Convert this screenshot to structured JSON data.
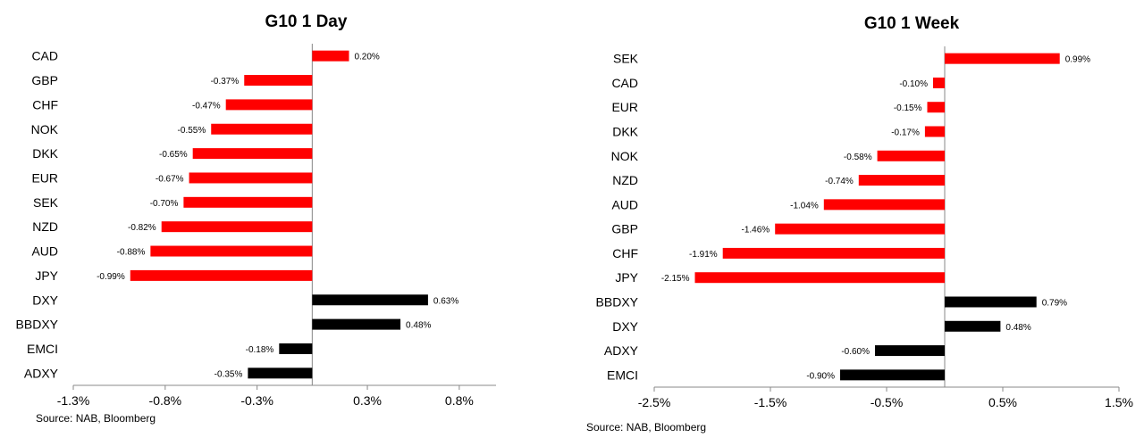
{
  "chart_data": [
    {
      "type": "bar",
      "orientation": "horizontal",
      "title": "G10 1 Day",
      "source": "Source: NAB, Bloomberg",
      "categories": [
        "CAD",
        "GBP",
        "CHF",
        "NOK",
        "DKK",
        "EUR",
        "SEK",
        "NZD",
        "AUD",
        "JPY",
        "DXY",
        "BBDXY",
        "EMCI",
        "ADXY"
      ],
      "values": [
        0.2,
        -0.37,
        -0.47,
        -0.55,
        -0.65,
        -0.67,
        -0.7,
        -0.82,
        -0.88,
        -0.99,
        0.63,
        0.48,
        -0.18,
        -0.35
      ],
      "data_labels": [
        "0.20%",
        "-0.37%",
        "-0.47%",
        "-0.55%",
        "-0.65%",
        "-0.67%",
        "-0.70%",
        "-0.82%",
        "-0.88%",
        "-0.99%",
        "0.63%",
        "0.48%",
        "-0.18%",
        "-0.35%"
      ],
      "bar_colors": [
        "#ff0000",
        "#ff0000",
        "#ff0000",
        "#ff0000",
        "#ff0000",
        "#ff0000",
        "#ff0000",
        "#ff0000",
        "#ff0000",
        "#ff0000",
        "#000000",
        "#000000",
        "#000000",
        "#000000"
      ],
      "xlim": [
        -1.3,
        1.0
      ],
      "x_ticks": [
        -1.3,
        -0.8,
        -0.3,
        0.3,
        0.8
      ],
      "x_tick_labels": [
        "-1.3%",
        "-0.8%",
        "-0.3%",
        "0.3%",
        "0.8%"
      ],
      "grid": false
    },
    {
      "type": "bar",
      "orientation": "horizontal",
      "title": "G10 1 Week",
      "source": "Source: NAB, Bloomberg",
      "categories": [
        "SEK",
        "CAD",
        "EUR",
        "DKK",
        "NOK",
        "NZD",
        "AUD",
        "GBP",
        "CHF",
        "JPY",
        "BBDXY",
        "DXY",
        "ADXY",
        "EMCI"
      ],
      "values": [
        0.99,
        -0.1,
        -0.15,
        -0.17,
        -0.58,
        -0.74,
        -1.04,
        -1.46,
        -1.91,
        -2.15,
        0.79,
        0.48,
        -0.6,
        -0.9
      ],
      "data_labels": [
        "0.99%",
        "-0.10%",
        "-0.15%",
        "-0.17%",
        "-0.58%",
        "-0.74%",
        "-1.04%",
        "-1.46%",
        "-1.91%",
        "-2.15%",
        "0.79%",
        "0.48%",
        "-0.60%",
        "-0.90%"
      ],
      "bar_colors": [
        "#ff0000",
        "#ff0000",
        "#ff0000",
        "#ff0000",
        "#ff0000",
        "#ff0000",
        "#ff0000",
        "#ff0000",
        "#ff0000",
        "#ff0000",
        "#000000",
        "#000000",
        "#000000",
        "#000000"
      ],
      "xlim": [
        -2.5,
        1.5
      ],
      "x_ticks": [
        -2.5,
        -1.5,
        -0.5,
        0.5,
        1.5
      ],
      "x_tick_labels": [
        "-2.5%",
        "-1.5%",
        "-0.5%",
        "0.5%",
        "1.5%"
      ],
      "grid": false
    }
  ]
}
